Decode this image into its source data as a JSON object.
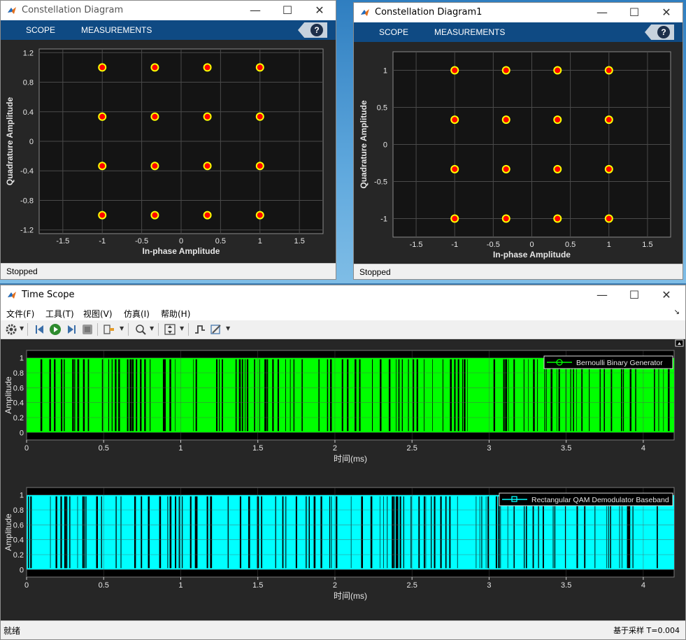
{
  "constellation_left": {
    "title": "Constellation Diagram",
    "tabs": [
      "SCOPE",
      "MEASUREMENTS"
    ],
    "help": "?",
    "status": "Stopped",
    "xlabel": "In-phase Amplitude",
    "ylabel": "Quadrature Amplitude",
    "xticks": [
      "-1.5",
      "-1",
      "-0.5",
      "0",
      "0.5",
      "1",
      "1.5"
    ],
    "yticks": [
      "1.2",
      "0.8",
      "0.4",
      "0",
      "-0.4",
      "-0.8",
      "-1.2"
    ]
  },
  "constellation_right": {
    "title": "Constellation Diagram1",
    "tabs": [
      "SCOPE",
      "MEASUREMENTS"
    ],
    "help": "?",
    "status": "Stopped",
    "xlabel": "In-phase Amplitude",
    "ylabel": "Quadrature Amplitude",
    "xticks": [
      "-1.5",
      "-1",
      "-0.5",
      "0",
      "0.5",
      "1",
      "1.5"
    ],
    "yticks": [
      "1",
      "0.5",
      "0",
      "-0.5",
      "-1"
    ]
  },
  "time_scope": {
    "title": "Time Scope",
    "menu": [
      "文件(F)",
      "工具(T)",
      "视图(V)",
      "仿真(I)",
      "帮助(H)"
    ],
    "status": "就绪",
    "footer_right": "基于采样  T=0.004",
    "plots": [
      {
        "legend": "Bernoulli Binary Generator",
        "ylabel": "Amplitude",
        "xlabel": "时间(ms)",
        "color": "#00ff00"
      },
      {
        "legend": "Rectangular QAM Demodulator Baseband",
        "ylabel": "Amplitude",
        "xlabel": "时间(ms)",
        "color": "#00ffff"
      }
    ],
    "xticks": [
      "0",
      "0.5",
      "1",
      "1.5",
      "2",
      "2.5",
      "3",
      "3.5",
      "4"
    ],
    "yticks": [
      "1",
      "0.8",
      "0.6",
      "0.4",
      "0.2",
      "0"
    ]
  },
  "chart_data": [
    {
      "type": "scatter",
      "title": "",
      "xlabel": "In-phase Amplitude",
      "ylabel": "Quadrature Amplitude",
      "xlim": [
        -1.8,
        1.8
      ],
      "ylim": [
        -1.25,
        1.25
      ],
      "grid": true,
      "series": [
        {
          "marker": "circle",
          "edge_color": "#ffff00",
          "fill_color": "#ff0000",
          "x": [
            -1,
            -0.3333,
            0.3333,
            1,
            -1,
            -0.3333,
            0.3333,
            1,
            -1,
            -0.3333,
            0.3333,
            1,
            -1,
            -0.3333,
            0.3333,
            1
          ],
          "y": [
            1,
            1,
            1,
            1,
            0.3333,
            0.3333,
            0.3333,
            0.3333,
            -0.3333,
            -0.3333,
            -0.3333,
            -0.3333,
            -1,
            -1,
            -1,
            -1
          ]
        }
      ]
    },
    {
      "type": "scatter",
      "title": "",
      "xlabel": "In-phase Amplitude",
      "ylabel": "Quadrature Amplitude",
      "xlim": [
        -1.8,
        1.8
      ],
      "ylim": [
        -1.25,
        1.25
      ],
      "grid": true,
      "series": [
        {
          "marker": "circle",
          "edge_color": "#ffff00",
          "fill_color": "#ff0000",
          "x": [
            -1,
            -0.3333,
            0.3333,
            1,
            -1,
            -0.3333,
            0.3333,
            1,
            -1,
            -0.3333,
            0.3333,
            1,
            -1,
            -0.3333,
            0.3333,
            1
          ],
          "y": [
            1,
            1,
            1,
            1,
            0.3333,
            0.3333,
            0.3333,
            0.3333,
            -0.3333,
            -0.3333,
            -0.3333,
            -0.3333,
            -1,
            -1,
            -1,
            -1
          ]
        }
      ]
    },
    {
      "type": "line",
      "title": "",
      "xlabel": "时间(ms)",
      "ylabel": "Amplitude",
      "xlim": [
        0,
        4.2
      ],
      "ylim": [
        -0.1,
        1.1
      ],
      "grid": true,
      "legend_position": "top-right",
      "series": [
        {
          "name": "Bernoulli Binary Generator",
          "color": "#00ff00",
          "values": "binary 0/1 sequence"
        }
      ]
    },
    {
      "type": "line",
      "title": "",
      "xlabel": "时间(ms)",
      "ylabel": "Amplitude",
      "xlim": [
        0,
        4.2
      ],
      "ylim": [
        -0.1,
        1.1
      ],
      "grid": true,
      "legend_position": "top-right",
      "series": [
        {
          "name": "Rectangular QAM Demodulator Baseband",
          "color": "#00ffff",
          "values": "binary 0/1 sequence"
        }
      ]
    }
  ]
}
